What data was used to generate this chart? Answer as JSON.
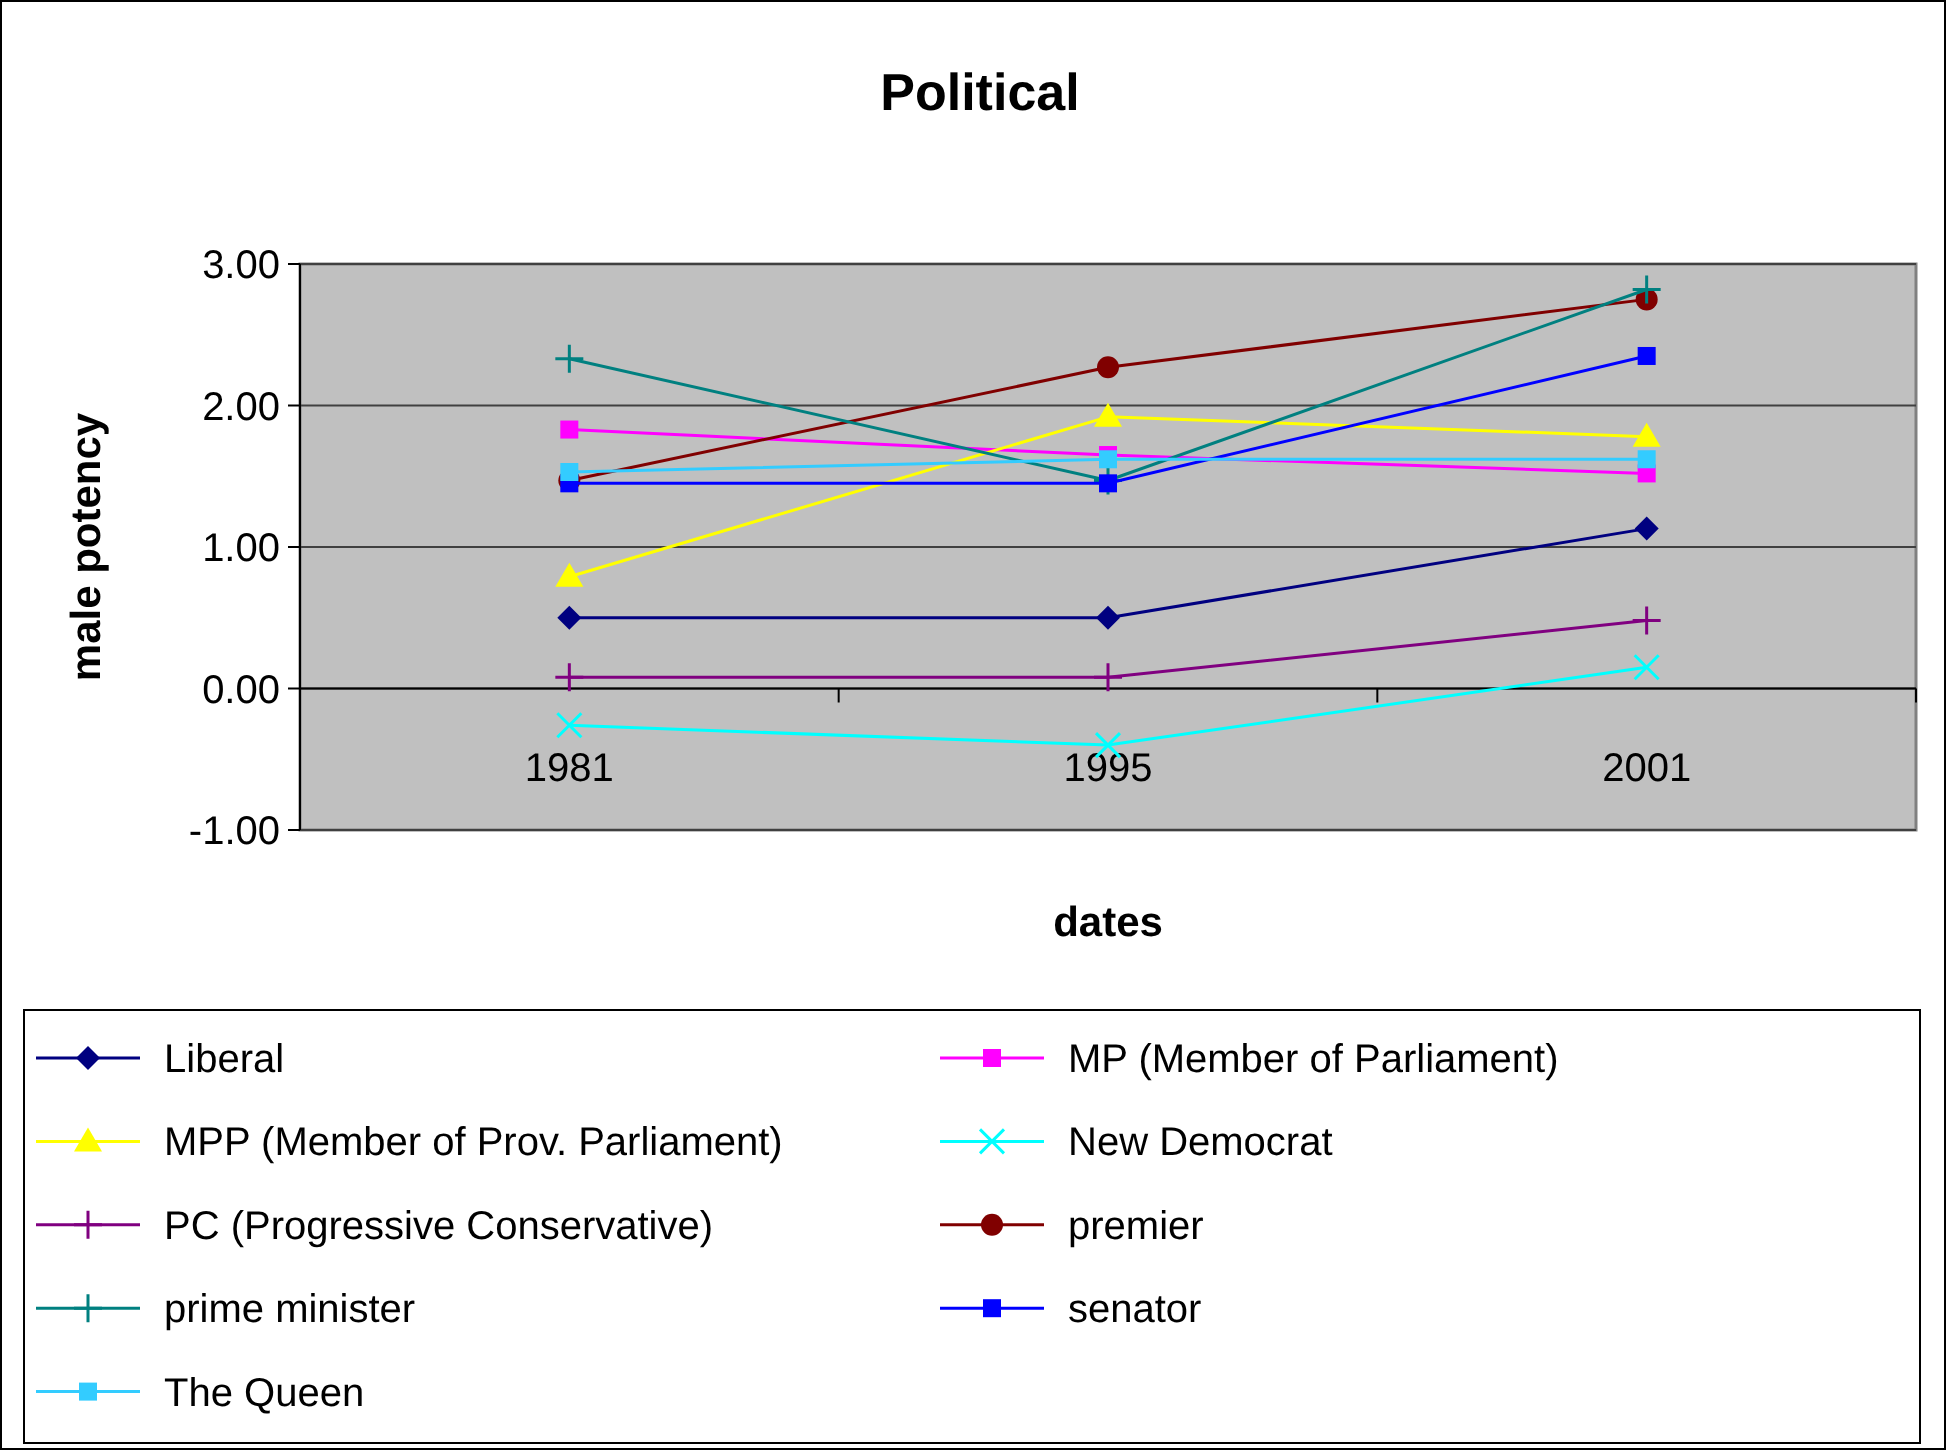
{
  "chart_data": {
    "type": "line",
    "title": "Political",
    "xlabel": "dates",
    "ylabel": "male potency",
    "categories": [
      "1981",
      "1995",
      "2001"
    ],
    "ylim": [
      -1,
      3
    ],
    "yticks": [
      {
        "value": -1,
        "label": "-1.00"
      },
      {
        "value": 0,
        "label": "0.00"
      },
      {
        "value": 1,
        "label": "1.00"
      },
      {
        "value": 2,
        "label": "2.00"
      },
      {
        "value": 3,
        "label": "3.00"
      }
    ],
    "grid": "y",
    "legend": "bottom",
    "series": [
      {
        "name": "Liberal",
        "color": "#000080",
        "marker": "diamond",
        "values": [
          0.5,
          0.5,
          1.13
        ]
      },
      {
        "name": "MP (Member of Parliament)",
        "color": "#ff00ff",
        "marker": "square",
        "values": [
          1.83,
          1.65,
          1.52
        ]
      },
      {
        "name": "MPP (Member of Prov. Parliament)",
        "color": "#ffff00",
        "marker": "triangle",
        "values": [
          0.79,
          1.92,
          1.78
        ]
      },
      {
        "name": "New Democrat",
        "color": "#00ffff",
        "marker": "x",
        "values": [
          -0.26,
          -0.4,
          0.15
        ]
      },
      {
        "name": "PC (Progressive Conservative)",
        "color": "#800080",
        "marker": "cross",
        "values": [
          0.08,
          0.08,
          0.48
        ]
      },
      {
        "name": "premier",
        "color": "#800000",
        "marker": "circle",
        "values": [
          1.47,
          2.27,
          2.75
        ]
      },
      {
        "name": "prime minister",
        "color": "#008080",
        "marker": "cross",
        "values": [
          2.33,
          1.47,
          2.82
        ]
      },
      {
        "name": "senator",
        "color": "#0000ff",
        "marker": "square",
        "values": [
          1.45,
          1.45,
          2.35
        ]
      },
      {
        "name": "The Queen",
        "color": "#33ccff",
        "marker": "square",
        "values": [
          1.53,
          1.62,
          1.62
        ]
      }
    ]
  }
}
